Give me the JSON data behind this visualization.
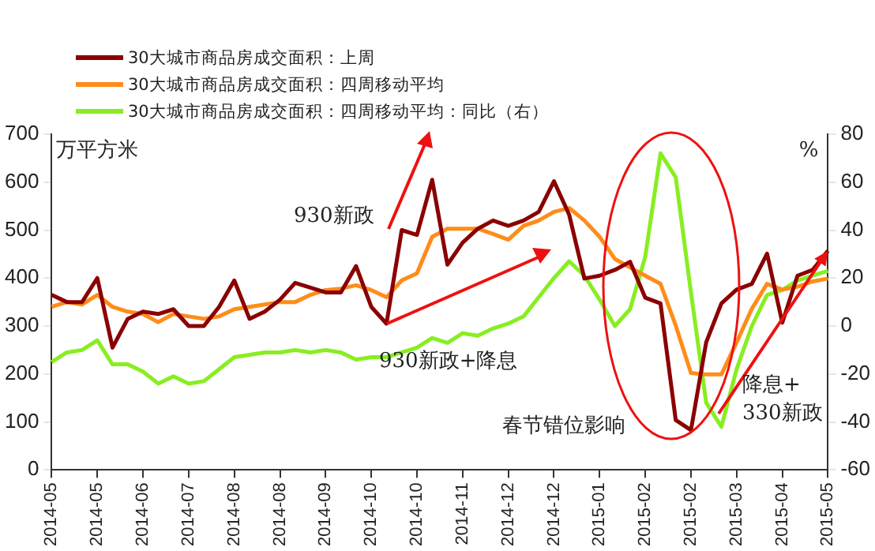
{
  "chart_data": {
    "type": "line",
    "ylabel": "万平方米",
    "y2label": "%",
    "categories": [
      "2014-05",
      null,
      null,
      "2014-05",
      null,
      null,
      "2014-06",
      null,
      null,
      "2014-07",
      null,
      null,
      "2014-08",
      null,
      null,
      "2014-08",
      null,
      null,
      "2014-09",
      null,
      null,
      "2014-10",
      null,
      null,
      "2014-10",
      null,
      null,
      "2014-11",
      null,
      null,
      "2014-12",
      null,
      null,
      "2014-12",
      null,
      null,
      "2015-01",
      null,
      null,
      "2015-02",
      null,
      null,
      "2015-02",
      null,
      null,
      "2015-03",
      null,
      null,
      "2015-04",
      null,
      null,
      "2015-05"
    ],
    "series": [
      {
        "name": "30大城市商品房成交面积：上周",
        "color": "#8b0000",
        "values": [
          365,
          350,
          350,
          400,
          255,
          315,
          330,
          325,
          335,
          300,
          300,
          340,
          395,
          315,
          330,
          355,
          390,
          380,
          370,
          370,
          425,
          340,
          305,
          500,
          490,
          605,
          428,
          474,
          503,
          520,
          509,
          520,
          538,
          602,
          532,
          399,
          405,
          417,
          434,
          359,
          347,
          104,
          83,
          266,
          347,
          376,
          388,
          451,
          307,
          405,
          417,
          457
        ]
      },
      {
        "name": "30大城市商品房成交面积：四周移动平均",
        "color": "#ff8c1a",
        "values": [
          340,
          350,
          345,
          365,
          340,
          330,
          325,
          308,
          325,
          320,
          315,
          320,
          335,
          340,
          345,
          350,
          350,
          365,
          375,
          378,
          385,
          375,
          360,
          395,
          410,
          486,
          503,
          503,
          503,
          492,
          480,
          509,
          520,
          538,
          546,
          520,
          486,
          440,
          422,
          405,
          388,
          301,
          202,
          199,
          199,
          266,
          336,
          388,
          376,
          382,
          393,
          399
        ]
      },
      {
        "name": "30大城市商品房成交面积：四周移动平均：同比（右）",
        "color": "#88ee22",
        "axis": "y2",
        "values": [
          -15,
          -11,
          -10,
          -6,
          -16,
          -16,
          -19,
          -24,
          -21,
          -24,
          -23,
          -18,
          -13,
          -12,
          -11,
          -11,
          -10,
          -11,
          -10,
          -11,
          -14,
          -13,
          -13,
          -11,
          -9,
          -5,
          -7,
          -3,
          -4,
          -1,
          1,
          4,
          12,
          20,
          27,
          21,
          11,
          0,
          7,
          29,
          72,
          62,
          14,
          -32,
          -42,
          -18,
          0,
          13,
          15,
          19,
          21,
          23
        ]
      }
    ],
    "ylim": [
      0,
      700
    ],
    "yticks": [
      0,
      100,
      200,
      300,
      400,
      500,
      600,
      700
    ],
    "y2lim": [
      -60,
      80
    ],
    "y2ticks": [
      -60,
      -40,
      -20,
      0,
      20,
      40,
      60,
      80
    ],
    "annotations": [
      "930新政",
      "930新政+降息",
      "春节错位影响",
      {
        "text": "降息+\n330新政",
        "x": "2015-05",
        "y": 457
      }
    ],
    "legend": "top",
    "marker": "none",
    "line_style": "solid"
  }
}
